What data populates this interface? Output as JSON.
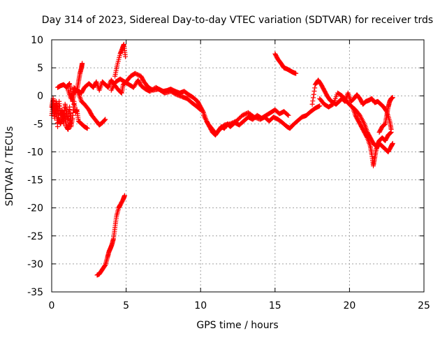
{
  "chart_data": {
    "type": "scatter",
    "title": "Day 314 of 2023, Sidereal Day-to-day VTEC variation (SDTVAR) for receiver trds",
    "xlabel": "GPS time / hours",
    "ylabel": "SDTVAR / TECUs",
    "xlim": [
      0,
      25
    ],
    "ylim": [
      -35,
      10
    ],
    "xticks": [
      0,
      5,
      10,
      15,
      20,
      25
    ],
    "yticks": [
      -35,
      -30,
      -25,
      -20,
      -15,
      -10,
      -5,
      0,
      5,
      10
    ],
    "grid": true,
    "marker": "+",
    "series": [
      {
        "name": "SDTVAR",
        "color": "#ff0000",
        "segments": [
          [
            [
              0.0,
              -3.5
            ],
            [
              0.1,
              -1.5
            ],
            [
              0.2,
              -4.0
            ],
            [
              0.3,
              -2.0
            ],
            [
              0.4,
              -5.5
            ],
            [
              0.5,
              -1.0
            ],
            [
              0.6,
              -3.5
            ],
            [
              0.7,
              -2.5
            ],
            [
              0.8,
              -5.0
            ],
            [
              0.9,
              -1.5
            ],
            [
              1.0,
              -3.0
            ],
            [
              1.1,
              -4.5
            ],
            [
              1.2,
              -2.0
            ],
            [
              1.3,
              -5.5
            ],
            [
              1.4,
              -4.0
            ],
            [
              1.5,
              -1.0
            ],
            [
              1.6,
              -3.0
            ],
            [
              1.7,
              -2.5
            ],
            [
              1.8,
              -4.5
            ],
            [
              2.0,
              -5.0
            ],
            [
              2.2,
              -5.5
            ],
            [
              2.4,
              -5.8
            ]
          ],
          [
            [
              0.0,
              -2.0
            ],
            [
              0.1,
              -0.5
            ],
            [
              0.2,
              -3.0
            ],
            [
              0.3,
              -1.0
            ],
            [
              0.4,
              -2.5
            ],
            [
              0.5,
              -4.5
            ],
            [
              0.6,
              -5.0
            ],
            [
              0.7,
              -4.0
            ],
            [
              0.8,
              -3.0
            ],
            [
              0.9,
              -4.0
            ],
            [
              1.0,
              -5.5
            ],
            [
              1.1,
              -6.0
            ],
            [
              1.2,
              -5.0
            ],
            [
              1.3,
              -3.5
            ]
          ],
          [
            [
              0.4,
              1.5
            ],
            [
              0.6,
              1.8
            ],
            [
              0.8,
              2.0
            ],
            [
              1.0,
              1.5
            ],
            [
              1.2,
              2.2
            ],
            [
              1.3,
              0.5
            ],
            [
              1.4,
              -1.0
            ],
            [
              1.5,
              0.5
            ],
            [
              1.7,
              1.0
            ],
            [
              1.8,
              2.5
            ],
            [
              1.9,
              4.0
            ],
            [
              2.0,
              5.0
            ],
            [
              2.05,
              5.8
            ]
          ],
          [
            [
              1.1,
              1.0
            ],
            [
              1.3,
              -0.5
            ],
            [
              1.5,
              1.5
            ],
            [
              1.8,
              0.5
            ],
            [
              2.0,
              -1.0
            ],
            [
              2.2,
              -1.5
            ],
            [
              2.5,
              -2.5
            ],
            [
              2.7,
              -3.5
            ],
            [
              3.0,
              -4.5
            ],
            [
              3.2,
              -5.2
            ],
            [
              3.4,
              -4.8
            ],
            [
              3.6,
              -4.2
            ]
          ],
          [
            [
              1.7,
              1.0
            ],
            [
              2.0,
              0.5
            ],
            [
              2.2,
              1.5
            ],
            [
              2.5,
              2.2
            ],
            [
              2.8,
              1.5
            ],
            [
              3.0,
              2.5
            ],
            [
              3.2,
              1.0
            ],
            [
              3.4,
              2.5
            ],
            [
              3.6,
              2.0
            ],
            [
              3.8,
              1.5
            ],
            [
              4.0,
              2.8
            ],
            [
              4.2,
              2.0
            ],
            [
              4.5,
              1.0
            ],
            [
              4.7,
              0.5
            ],
            [
              4.8,
              2.0
            ],
            [
              5.0,
              2.5
            ],
            [
              5.3,
              3.5
            ],
            [
              5.6,
              4.0
            ],
            [
              6.0,
              3.5
            ],
            [
              6.2,
              2.5
            ],
            [
              6.5,
              1.5
            ],
            [
              6.8,
              1.0
            ],
            [
              7.2,
              1.2
            ],
            [
              7.5,
              0.8
            ],
            [
              7.8,
              1.0
            ],
            [
              8.0,
              1.2
            ],
            [
              8.3,
              0.8
            ],
            [
              8.6,
              0.5
            ],
            [
              8.9,
              0.8
            ],
            [
              9.2,
              0.2
            ],
            [
              9.5,
              -0.3
            ],
            [
              9.8,
              -1.0
            ]
          ],
          [
            [
              4.0,
              1.0
            ],
            [
              4.3,
              2.5
            ],
            [
              4.6,
              3.0
            ],
            [
              4.9,
              2.5
            ],
            [
              5.2,
              2.0
            ],
            [
              5.5,
              1.5
            ],
            [
              5.8,
              2.8
            ],
            [
              6.0,
              1.8
            ],
            [
              6.3,
              1.2
            ],
            [
              6.6,
              0.8
            ],
            [
              7.0,
              1.5
            ],
            [
              7.3,
              1.0
            ],
            [
              7.6,
              0.5
            ],
            [
              8.0,
              0.8
            ],
            [
              8.4,
              0.2
            ],
            [
              8.8,
              -0.2
            ],
            [
              9.1,
              -0.5
            ],
            [
              9.4,
              -1.2
            ],
            [
              9.7,
              -1.8
            ],
            [
              10.0,
              -2.5
            ]
          ],
          [
            [
              4.25,
              3.5
            ],
            [
              4.4,
              5.5
            ],
            [
              4.6,
              7.5
            ],
            [
              4.75,
              8.5
            ],
            [
              4.85,
              9.2
            ],
            [
              4.95,
              7.0
            ]
          ],
          [
            [
              3.05,
              -32.0
            ],
            [
              3.2,
              -31.8
            ],
            [
              3.4,
              -31.0
            ],
            [
              3.6,
              -30.2
            ],
            [
              3.75,
              -28.8
            ],
            [
              3.85,
              -27.8
            ],
            [
              3.95,
              -27.2
            ],
            [
              4.05,
              -26.5
            ],
            [
              4.15,
              -25.5
            ],
            [
              4.25,
              -23.5
            ],
            [
              4.35,
              -21.5
            ],
            [
              4.5,
              -20.0
            ],
            [
              4.6,
              -19.5
            ],
            [
              4.8,
              -18.5
            ],
            [
              4.9,
              -17.8
            ]
          ],
          [
            [
              9.8,
              -1.0
            ],
            [
              10.0,
              -2.0
            ],
            [
              10.2,
              -3.0
            ],
            [
              10.4,
              -4.5
            ],
            [
              10.6,
              -5.5
            ],
            [
              10.8,
              -6.5
            ],
            [
              11.0,
              -7.0
            ],
            [
              11.2,
              -6.2
            ],
            [
              11.4,
              -5.5
            ],
            [
              11.6,
              -5.8
            ],
            [
              11.8,
              -5.0
            ],
            [
              12.0,
              -5.5
            ],
            [
              12.3,
              -4.8
            ],
            [
              12.6,
              -5.2
            ],
            [
              12.9,
              -4.5
            ],
            [
              13.2,
              -3.8
            ],
            [
              13.5,
              -4.2
            ],
            [
              13.8,
              -3.5
            ],
            [
              14.1,
              -4.0
            ],
            [
              14.4,
              -3.5
            ],
            [
              14.7,
              -3.0
            ],
            [
              15.0,
              -2.5
            ],
            [
              15.3,
              -3.2
            ],
            [
              15.6,
              -2.8
            ],
            [
              15.9,
              -3.5
            ]
          ],
          [
            [
              10.2,
              -3.5
            ],
            [
              10.5,
              -5.0
            ],
            [
              10.8,
              -6.0
            ],
            [
              11.0,
              -6.8
            ],
            [
              11.3,
              -6.0
            ],
            [
              11.6,
              -5.2
            ],
            [
              12.0,
              -5.0
            ],
            [
              12.4,
              -4.5
            ],
            [
              12.8,
              -3.5
            ],
            [
              13.2,
              -3.0
            ],
            [
              13.6,
              -3.8
            ],
            [
              14.0,
              -4.2
            ],
            [
              14.3,
              -3.8
            ],
            [
              14.6,
              -4.5
            ],
            [
              14.9,
              -3.8
            ],
            [
              15.2,
              -4.2
            ],
            [
              15.5,
              -4.8
            ],
            [
              15.8,
              -5.5
            ],
            [
              16.0,
              -5.8
            ],
            [
              16.2,
              -5.2
            ],
            [
              16.5,
              -4.5
            ],
            [
              16.8,
              -3.8
            ],
            [
              17.1,
              -3.5
            ],
            [
              17.4,
              -2.8
            ],
            [
              17.7,
              -2.2
            ],
            [
              18.0,
              -1.8
            ]
          ],
          [
            [
              15.0,
              7.5
            ],
            [
              15.2,
              6.5
            ],
            [
              15.4,
              5.8
            ],
            [
              15.6,
              5.0
            ],
            [
              15.8,
              4.8
            ],
            [
              16.0,
              4.5
            ],
            [
              16.2,
              4.2
            ],
            [
              16.4,
              4.0
            ]
          ],
          [
            [
              17.5,
              -1.5
            ],
            [
              17.7,
              2.0
            ],
            [
              17.9,
              2.8
            ],
            [
              18.1,
              2.0
            ],
            [
              18.3,
              1.0
            ],
            [
              18.5,
              0.0
            ],
            [
              18.7,
              -0.8
            ],
            [
              18.9,
              -1.2
            ],
            [
              19.1,
              -1.5
            ],
            [
              19.3,
              -1.0
            ],
            [
              19.5,
              -0.5
            ],
            [
              19.7,
              -1.0
            ],
            [
              19.9,
              0.5
            ],
            [
              20.1,
              -1.0
            ],
            [
              20.3,
              -0.5
            ],
            [
              20.5,
              0.2
            ],
            [
              20.7,
              -0.5
            ],
            [
              20.9,
              -1.5
            ],
            [
              21.1,
              -1.0
            ],
            [
              21.3,
              -0.8
            ],
            [
              21.5,
              -0.5
            ],
            [
              21.7,
              -1.2
            ],
            [
              21.9,
              -1.0
            ],
            [
              22.1,
              -1.5
            ],
            [
              22.3,
              -2.0
            ],
            [
              22.5,
              -2.8
            ],
            [
              22.7,
              -4.5
            ],
            [
              22.8,
              -6.0
            ]
          ],
          [
            [
              18.0,
              -0.5
            ],
            [
              18.3,
              -1.5
            ],
            [
              18.6,
              -2.0
            ],
            [
              18.9,
              -1.5
            ],
            [
              19.2,
              0.5
            ],
            [
              19.5,
              0.0
            ],
            [
              19.8,
              -1.0
            ],
            [
              20.1,
              -1.8
            ],
            [
              20.4,
              -2.5
            ],
            [
              20.7,
              -3.5
            ],
            [
              21.0,
              -5.0
            ],
            [
              21.2,
              -6.5
            ],
            [
              21.4,
              -7.5
            ],
            [
              21.6,
              -8.5
            ],
            [
              21.8,
              -9.0
            ],
            [
              22.0,
              -8.0
            ],
            [
              22.2,
              -7.5
            ],
            [
              22.4,
              -8.0
            ],
            [
              22.6,
              -7.0
            ],
            [
              22.8,
              -6.5
            ]
          ],
          [
            [
              20.2,
              -2.0
            ],
            [
              20.4,
              -3.5
            ],
            [
              20.6,
              -4.5
            ],
            [
              20.8,
              -5.5
            ],
            [
              21.0,
              -6.5
            ],
            [
              21.2,
              -7.5
            ],
            [
              21.4,
              -9.0
            ],
            [
              21.5,
              -10.5
            ],
            [
              21.6,
              -12.5
            ],
            [
              21.7,
              -11.0
            ],
            [
              21.8,
              -9.5
            ],
            [
              22.0,
              -8.5
            ],
            [
              22.2,
              -9.0
            ],
            [
              22.4,
              -9.5
            ],
            [
              22.6,
              -10.0
            ],
            [
              22.8,
              -9.0
            ],
            [
              22.9,
              -8.5
            ]
          ],
          [
            [
              22.0,
              -6.5
            ],
            [
              22.2,
              -5.5
            ],
            [
              22.4,
              -5.0
            ],
            [
              22.5,
              -3.5
            ],
            [
              22.6,
              -2.0
            ],
            [
              22.7,
              -1.0
            ],
            [
              22.8,
              -0.5
            ],
            [
              22.9,
              -0.3
            ]
          ]
        ]
      }
    ]
  }
}
